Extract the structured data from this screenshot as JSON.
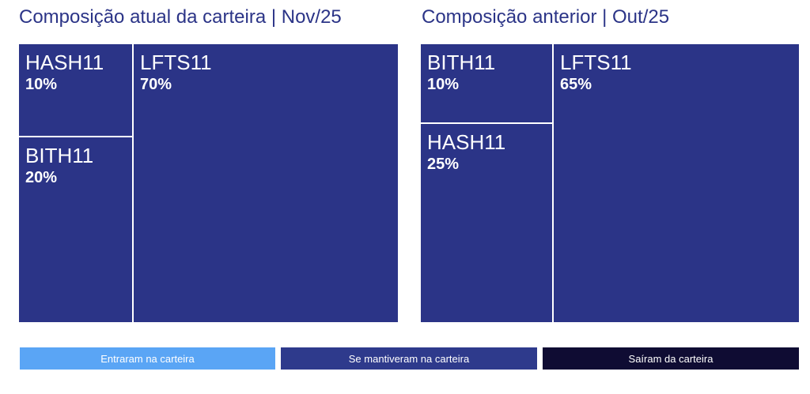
{
  "chart_data": [
    {
      "type": "treemap",
      "title": "Composição atual da carteira | Nov/25",
      "items": [
        {
          "name": "HASH11",
          "value": 10,
          "label": "10%",
          "status": "Se mantiveram na carteira"
        },
        {
          "name": "BITH11",
          "value": 20,
          "label": "20%",
          "status": "Se mantiveram na carteira"
        },
        {
          "name": "LFTS11",
          "value": 70,
          "label": "70%",
          "status": "Se mantiveram na carteira"
        }
      ]
    },
    {
      "type": "treemap",
      "title": "Composição anterior | Out/25",
      "items": [
        {
          "name": "BITH11",
          "value": 10,
          "label": "10%",
          "status": "Se mantiveram na carteira"
        },
        {
          "name": "HASH11",
          "value": 25,
          "label": "25%",
          "status": "Se mantiveram na carteira"
        },
        {
          "name": "LFTS11",
          "value": 65,
          "label": "65%",
          "status": "Se mantiveram na carteira"
        }
      ]
    }
  ],
  "legend": [
    {
      "label": "Entraram na carteira",
      "color": "#5aa5f5"
    },
    {
      "label": "Se mantiveram na carteira",
      "color": "#2e3a8c"
    },
    {
      "label": "Saíram da carteira",
      "color": "#0f0c33"
    }
  ],
  "colors": {
    "tile": "#2b3487",
    "title": "#2b3487"
  }
}
